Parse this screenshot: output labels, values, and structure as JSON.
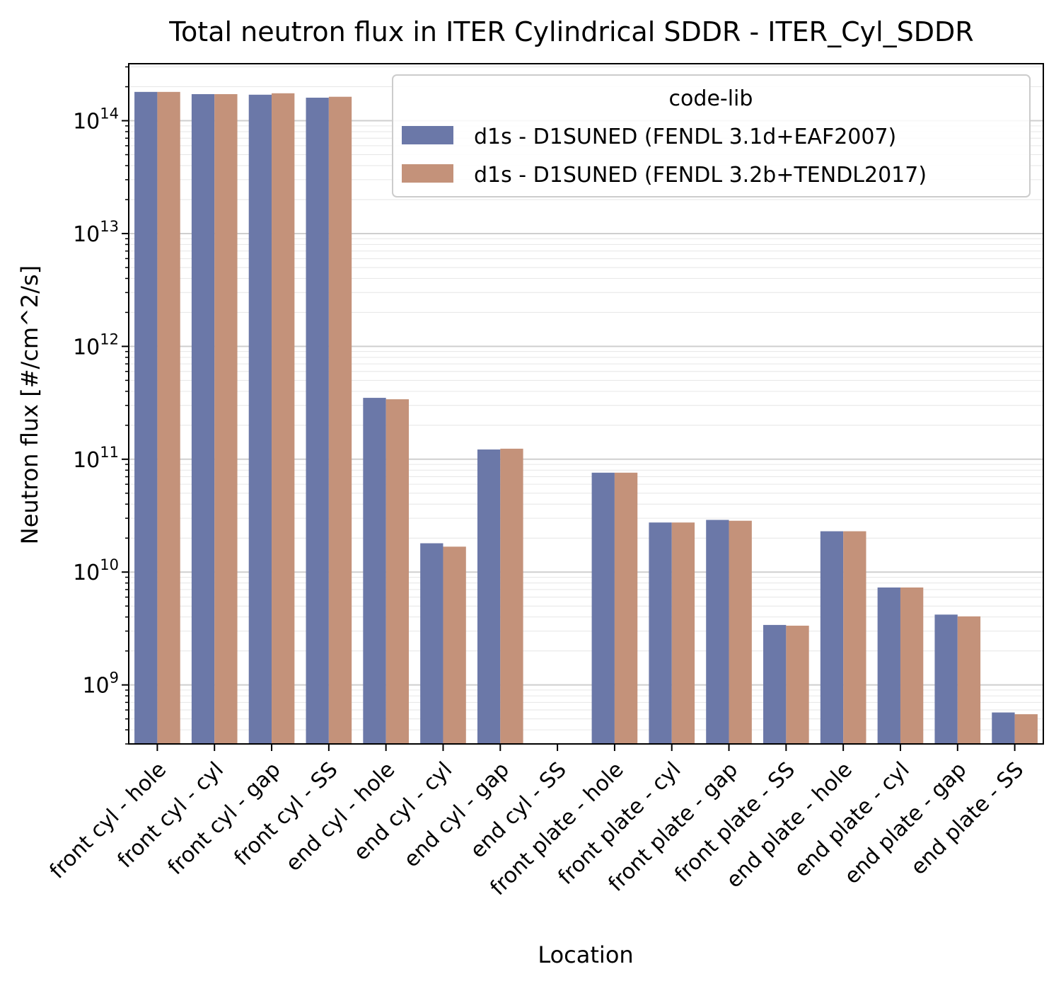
{
  "chart_data": {
    "type": "bar",
    "title": "Total neutron flux in ITER Cylindrical SDDR - ITER_Cyl_SDDR",
    "xlabel": "Location",
    "ylabel": "Neutron flux [#/cm^2/s]",
    "yscale": "log",
    "ylim": [
      300000000.0,
      320000000000000.0
    ],
    "grid": true,
    "legend": {
      "title": "code-lib",
      "placement": "top-right"
    },
    "categories": [
      "front cyl - hole",
      "front cyl - cyl",
      "front cyl - gap",
      "front cyl - SS",
      "end cyl - hole",
      "end cyl - cyl",
      "end cyl - gap",
      "end cyl - SS",
      "front plate - hole",
      "front plate - cyl",
      "front plate - gap",
      "front plate - SS",
      "end plate - hole",
      "end plate - cyl",
      "end plate - gap",
      "end plate - SS"
    ],
    "series": [
      {
        "name": "d1s - D1SUNED (FENDL 3.1d+EAF2007)",
        "color": "#6b78a8",
        "values": [
          180000000000000.0,
          172000000000000.0,
          170000000000000.0,
          160000000000000.0,
          350000000000.0,
          18000000000.0,
          122000000000.0,
          null,
          76000000000.0,
          27500000000.0,
          29000000000.0,
          3400000000.0,
          23000000000.0,
          7300000000.0,
          4200000000.0,
          570000000.0
        ]
      },
      {
        "name": "d1s - D1SUNED (FENDL 3.2b+TENDL2017)",
        "color": "#c4927a",
        "values": [
          180000000000000.0,
          172000000000000.0,
          175000000000000.0,
          163000000000000.0,
          340000000000.0,
          16800000000.0,
          124000000000.0,
          null,
          76000000000.0,
          27500000000.0,
          28500000000.0,
          3350000000.0,
          23000000000.0,
          7300000000.0,
          4050000000.0,
          550000000.0
        ]
      }
    ],
    "y_ticks": [
      {
        "exp": 9,
        "base": "10",
        "label": "9"
      },
      {
        "exp": 10,
        "base": "10",
        "label": "10"
      },
      {
        "exp": 11,
        "base": "10",
        "label": "11"
      },
      {
        "exp": 12,
        "base": "10",
        "label": "12"
      },
      {
        "exp": 13,
        "base": "10",
        "label": "13"
      },
      {
        "exp": 14,
        "base": "10",
        "label": "14"
      }
    ]
  }
}
